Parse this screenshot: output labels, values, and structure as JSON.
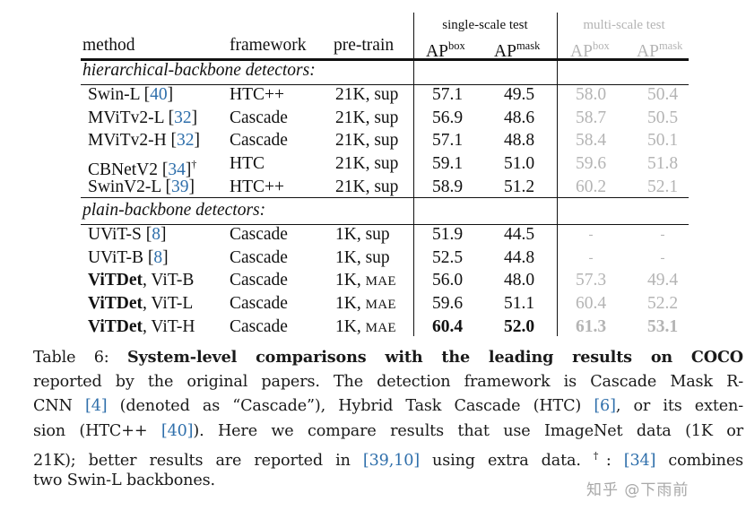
{
  "table": {
    "headers": {
      "method": "method",
      "framework": "framework",
      "pretrain": "pre-train",
      "single_scale_group": "single-scale test",
      "multi_scale_group": "multi-scale test",
      "ap_base": "AP",
      "box_sup": "box",
      "mask_sup": "mask"
    },
    "sections": [
      {
        "title": "hierarchical-backbone detectors:",
        "rows": [
          {
            "method": "Swin-L",
            "method_bold": "",
            "cite": "40",
            "dagger": "",
            "framework": "HTC++",
            "pretrain": "21K, sup",
            "pretrain_sc": "",
            "ss_box": "57.1",
            "ss_mask": "49.5",
            "ms_box": "58.0",
            "ms_mask": "50.4"
          },
          {
            "method": "MViTv2-L",
            "method_bold": "",
            "cite": "32",
            "dagger": "",
            "framework": "Cascade",
            "pretrain": "21K, sup",
            "pretrain_sc": "",
            "ss_box": "56.9",
            "ss_mask": "48.6",
            "ms_box": "58.7",
            "ms_mask": "50.5"
          },
          {
            "method": "MViTv2-H",
            "method_bold": "",
            "cite": "32",
            "dagger": "",
            "framework": "Cascade",
            "pretrain": "21K, sup",
            "pretrain_sc": "",
            "ss_box": "57.1",
            "ss_mask": "48.8",
            "ms_box": "58.4",
            "ms_mask": "50.1"
          },
          {
            "method": "CBNetV2",
            "method_bold": "",
            "cite": "34",
            "dagger": "†",
            "framework": "HTC",
            "pretrain": "21K, sup",
            "pretrain_sc": "",
            "ss_box": "59.1",
            "ss_mask": "51.0",
            "ms_box": "59.6",
            "ms_mask": "51.8"
          },
          {
            "method": "SwinV2-L",
            "method_bold": "",
            "cite": "39",
            "dagger": "",
            "framework": "HTC++",
            "pretrain": "21K, sup",
            "pretrain_sc": "",
            "ss_box": "58.9",
            "ss_mask": "51.2",
            "ms_box": "60.2",
            "ms_mask": "52.1"
          }
        ]
      },
      {
        "title": "plain-backbone detectors:",
        "rows": [
          {
            "method": "UViT-S",
            "method_bold": "",
            "cite": "8",
            "dagger": "",
            "framework": "Cascade",
            "pretrain": "1K, sup",
            "pretrain_sc": "",
            "ss_box": "51.9",
            "ss_mask": "44.5",
            "ms_box": "-",
            "ms_mask": "-"
          },
          {
            "method": "UViT-B",
            "method_bold": "",
            "cite": "8",
            "dagger": "",
            "framework": "Cascade",
            "pretrain": "1K, sup",
            "pretrain_sc": "",
            "ss_box": "52.5",
            "ss_mask": "44.8",
            "ms_box": "-",
            "ms_mask": "-"
          },
          {
            "method": ", ViT-B",
            "method_bold": "ViTDet",
            "cite": "",
            "dagger": "",
            "framework": "Cascade",
            "pretrain": "1K, ",
            "pretrain_sc": "MAE",
            "ss_box": "56.0",
            "ss_mask": "48.0",
            "ms_box": "57.3",
            "ms_mask": "49.4"
          },
          {
            "method": ", ViT-L",
            "method_bold": "ViTDet",
            "cite": "",
            "dagger": "",
            "framework": "Cascade",
            "pretrain": "1K, ",
            "pretrain_sc": "MAE",
            "ss_box": "59.6",
            "ss_mask": "51.1",
            "ms_box": "60.4",
            "ms_mask": "52.2"
          },
          {
            "method": ", ViT-H",
            "method_bold": "ViTDet",
            "cite": "",
            "dagger": "",
            "framework": "Cascade",
            "pretrain": "1K, ",
            "pretrain_sc": "MAE",
            "ss_box": "60.4",
            "ss_mask": "52.0",
            "ms_box": "61.3",
            "ms_mask": "53.1",
            "bold_single_scale": true
          }
        ]
      }
    ]
  },
  "caption": {
    "label": "Table 6: ",
    "bold_title": "System-level comparisons with the leading results on COCO",
    "lines": [
      {
        "parts": [
          "reported by the original papers. The detection framework is Cascade Mask R-"
        ]
      },
      {
        "parts": [
          "CNN ",
          "[4]",
          " (denoted as “Cascade”), Hybrid Task Cascade (HTC) ",
          "[6]",
          ", or its exten-"
        ]
      },
      {
        "parts": [
          "sion (HTC++ ",
          "[40]",
          "). Here we compare results that use ImageNet data (1K or"
        ]
      },
      {
        "parts": [
          "21K); better results are reported in ",
          "[39,10]",
          " using extra data. ",
          "†",
          ": ",
          "[34]",
          " combines"
        ]
      },
      {
        "parts": [
          "two Swin-L backbones."
        ]
      }
    ]
  },
  "watermark": "知乎 @下雨前",
  "colors": {
    "text": "#111111",
    "muted_multiscale": "#b4b4b4",
    "citation": "#2f6fab"
  }
}
